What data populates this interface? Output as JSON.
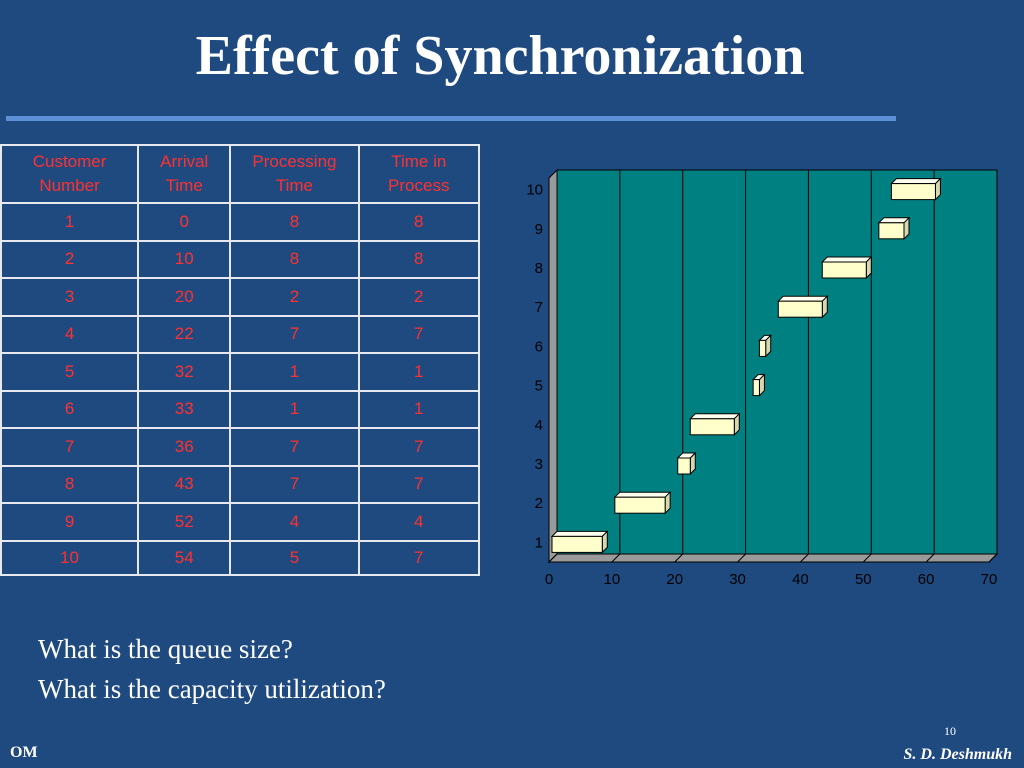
{
  "slide": {
    "title": "Effect of Synchronization",
    "questions": [
      "What is the queue size?",
      "What is the capacity utilization?"
    ],
    "footer_left": "OM",
    "footer_right": "S. D. Deshmukh",
    "slide_number": "10"
  },
  "table": {
    "headers": [
      "Customer Number",
      "Arrival Time",
      "Processing Time",
      "Time in Process"
    ],
    "rows": [
      [
        "1",
        "0",
        "8",
        "8"
      ],
      [
        "2",
        "10",
        "8",
        "8"
      ],
      [
        "3",
        "20",
        "2",
        "2"
      ],
      [
        "4",
        "22",
        "7",
        "7"
      ],
      [
        "5",
        "32",
        "1",
        "1"
      ],
      [
        "6",
        "33",
        "1",
        "1"
      ],
      [
        "7",
        "36",
        "7",
        "7"
      ],
      [
        "8",
        "43",
        "7",
        "7"
      ],
      [
        "9",
        "52",
        "4",
        "4"
      ],
      [
        "10",
        "54",
        "5",
        "7"
      ]
    ]
  },
  "chart_data": {
    "type": "bar",
    "orientation": "horizontal-gantt",
    "categories": [
      "1",
      "2",
      "3",
      "4",
      "5",
      "6",
      "7",
      "8",
      "9",
      "10"
    ],
    "series": [
      {
        "values": [
          {
            "start": 0,
            "end": 8
          },
          {
            "start": 10,
            "end": 18
          },
          {
            "start": 20,
            "end": 22
          },
          {
            "start": 22,
            "end": 29
          },
          {
            "start": 32,
            "end": 33
          },
          {
            "start": 33,
            "end": 34
          },
          {
            "start": 36,
            "end": 43
          },
          {
            "start": 43,
            "end": 50
          },
          {
            "start": 52,
            "end": 56
          },
          {
            "start": 54,
            "end": 61
          }
        ]
      }
    ],
    "xticks": [
      "0",
      "10",
      "20",
      "30",
      "40",
      "50",
      "60",
      "70"
    ],
    "xlim": [
      0,
      70
    ],
    "grid": "vertical",
    "colors": {
      "plot_bg": "#008080",
      "bar_fill": "#ffffcc",
      "grid": "#000000"
    }
  }
}
